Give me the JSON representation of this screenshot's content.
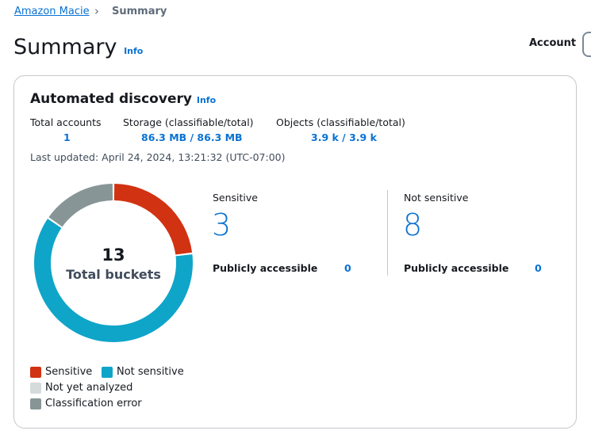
{
  "breadcrumb": {
    "root": "Amazon Macie",
    "current": "Summary"
  },
  "header": {
    "title": "Summary",
    "info": "Info",
    "account_label": "Account"
  },
  "card": {
    "title": "Automated discovery",
    "info": "Info",
    "stats": [
      {
        "label": "Total accounts",
        "value": "1"
      },
      {
        "label": "Storage (classifiable/total)",
        "value": "86.3 MB / 86.3 MB"
      },
      {
        "label": "Objects (classifiable/total)",
        "value": "3.9 k / 3.9 k"
      }
    ],
    "last_updated": "Last updated: April 24, 2024, 13:21:32 (UTC-07:00)",
    "sensitive": {
      "label": "Sensitive",
      "value": "3",
      "public_label": "Publicly accessible",
      "public_value": "0"
    },
    "not_sensitive": {
      "label": "Not sensitive",
      "value": "8",
      "public_label": "Publicly accessible",
      "public_value": "0"
    }
  },
  "chart_data": {
    "type": "pie",
    "variant": "donut",
    "center_value": "13",
    "center_label": "Total buckets",
    "categories": [
      "Sensitive",
      "Not sensitive",
      "Not yet analyzed",
      "Classification error"
    ],
    "values": [
      3,
      8,
      0,
      2
    ],
    "colors": [
      "#d13212",
      "#0ea5c9",
      "#d5dbdb",
      "#879596"
    ],
    "legend_position": "bottom"
  }
}
